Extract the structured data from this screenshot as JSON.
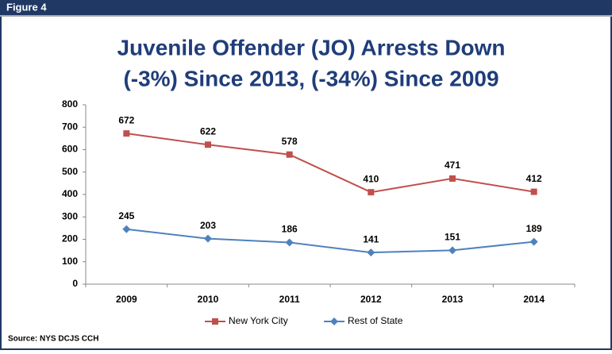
{
  "chart_data": {
    "type": "line",
    "figure_label": "Figure 4",
    "title": [
      "Juvenile Offender (JO) Arrests Down",
      "(-3%) Since 2013, (-34%) Since 2009"
    ],
    "source": "Source: NYS DCJS CCH",
    "categories": [
      "2009",
      "2010",
      "2011",
      "2012",
      "2013",
      "2014"
    ],
    "series": [
      {
        "name": "New York City",
        "color": "#c0504d",
        "marker": "square",
        "values": [
          672,
          622,
          578,
          410,
          471,
          412
        ]
      },
      {
        "name": "Rest of State",
        "color": "#4f81bd",
        "marker": "diamond",
        "values": [
          245,
          203,
          186,
          141,
          151,
          189
        ]
      }
    ],
    "ylim": [
      0,
      800
    ],
    "yticks": [
      0,
      100,
      200,
      300,
      400,
      500,
      600,
      700,
      800
    ],
    "grid": false,
    "legend": "bottom"
  }
}
